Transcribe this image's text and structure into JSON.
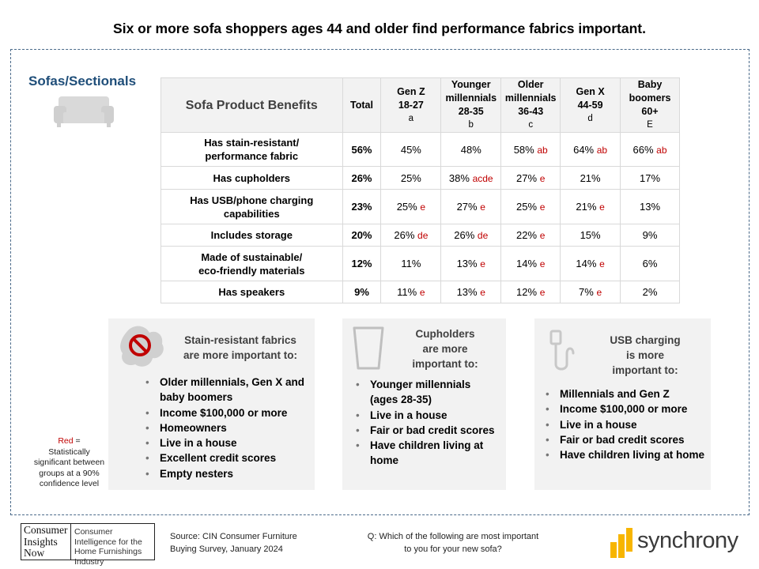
{
  "headline": "Six or more sofa shoppers ages 44 and older find performance fabrics important.",
  "section_title": "Sofas/Sectionals",
  "icons": {
    "sofa": "sofa-icon",
    "stain": "no-stain-icon",
    "cup": "cup-icon",
    "usb": "usb-cable-icon"
  },
  "colors": {
    "significance_red": "#c00000",
    "title_blue": "#1f4e79",
    "panel_gray": "#f2f2f2",
    "synchrony_yellow": "#f7b500"
  },
  "table": {
    "benefit_header": "Sofa Product Benefits",
    "columns": [
      {
        "line1": "Total",
        "line2": "",
        "line3": "",
        "code": ""
      },
      {
        "line1": "Gen Z",
        "line2": "18-27",
        "line3": "",
        "code": "a"
      },
      {
        "line1": "Younger",
        "line2": "millennials",
        "line3": "28-35",
        "code": "b"
      },
      {
        "line1": "Older",
        "line2": "millennials",
        "line3": "36-43",
        "code": "c"
      },
      {
        "line1": "Gen X",
        "line2": "44-59",
        "line3": "",
        "code": "d"
      },
      {
        "line1": "Baby",
        "line2": "boomers",
        "line3": "60+",
        "code": "E"
      }
    ],
    "rows": [
      {
        "benefit_l1": "Has stain-resistant/",
        "benefit_l2": "performance fabric",
        "total": "56%",
        "cells": [
          {
            "v": "45%",
            "s": ""
          },
          {
            "v": "48%",
            "s": ""
          },
          {
            "v": "58%",
            "s": "ab"
          },
          {
            "v": "64%",
            "s": "ab"
          },
          {
            "v": "66%",
            "s": "ab"
          }
        ]
      },
      {
        "benefit_l1": "Has cupholders",
        "benefit_l2": "",
        "total": "26%",
        "cells": [
          {
            "v": "25%",
            "s": ""
          },
          {
            "v": "38%",
            "s": "acde"
          },
          {
            "v": "27%",
            "s": "e"
          },
          {
            "v": "21%",
            "s": ""
          },
          {
            "v": "17%",
            "s": ""
          }
        ]
      },
      {
        "benefit_l1": "Has USB/phone charging",
        "benefit_l2": "capabilities",
        "total": "23%",
        "cells": [
          {
            "v": "25%",
            "s": "e"
          },
          {
            "v": "27%",
            "s": "e"
          },
          {
            "v": "25%",
            "s": "e"
          },
          {
            "v": "21%",
            "s": "e"
          },
          {
            "v": "13%",
            "s": ""
          }
        ]
      },
      {
        "benefit_l1": "Includes storage",
        "benefit_l2": "",
        "total": "20%",
        "cells": [
          {
            "v": "26%",
            "s": "de"
          },
          {
            "v": "26%",
            "s": "de"
          },
          {
            "v": "22%",
            "s": "e"
          },
          {
            "v": "15%",
            "s": ""
          },
          {
            "v": "9%",
            "s": ""
          }
        ]
      },
      {
        "benefit_l1": "Made of sustainable/",
        "benefit_l2": "eco-friendly materials",
        "total": "12%",
        "cells": [
          {
            "v": "11%",
            "s": ""
          },
          {
            "v": "13%",
            "s": "e"
          },
          {
            "v": "14%",
            "s": "e"
          },
          {
            "v": "14%",
            "s": "e"
          },
          {
            "v": "6%",
            "s": ""
          }
        ]
      },
      {
        "benefit_l1": "Has speakers",
        "benefit_l2": "",
        "total": "9%",
        "cells": [
          {
            "v": "11%",
            "s": "e"
          },
          {
            "v": "13%",
            "s": "e"
          },
          {
            "v": "12%",
            "s": "e"
          },
          {
            "v": "7%",
            "s": "e"
          },
          {
            "v": "2%",
            "s": ""
          }
        ]
      }
    ]
  },
  "panels": [
    {
      "title_l1": "Stain-resistant fabrics",
      "title_l2": "are more important to:",
      "title_l3": "",
      "items": [
        "Older millennials, Gen X and baby boomers",
        "Income $100,000 or more",
        "Homeowners",
        "Live in a house",
        "Excellent credit scores",
        "Empty nesters"
      ]
    },
    {
      "title_l1": "Cupholders",
      "title_l2": "are more",
      "title_l3": "important to:",
      "items": [
        "Younger millennials (ages 28-35)",
        "Live in a house",
        "Fair or bad credit scores",
        "Have children living at home"
      ]
    },
    {
      "title_l1": "USB charging",
      "title_l2": "is more",
      "title_l3": "important to:",
      "items": [
        "Millennials and Gen Z",
        "Income $100,000 or more",
        "Live in a house",
        "Fair or bad credit scores",
        "Have children living at home"
      ]
    }
  ],
  "red_note": {
    "red_word": "Red",
    "rest_l1": " =",
    "rest_l2": "Statistically significant between groups at a 90% confidence level"
  },
  "footer": {
    "cin_left": [
      "Consumer",
      "Insights",
      "Now"
    ],
    "cin_right": "Consumer Intelligence for the Home Furnishings Industry",
    "source_l1": "Source: CIN Consumer Furniture",
    "source_l2": "Buying Survey, January 2024",
    "question_l1": "Q: Which of the following are most important",
    "question_l2": "to you for your new sofa?",
    "synchrony": "synchrony"
  }
}
